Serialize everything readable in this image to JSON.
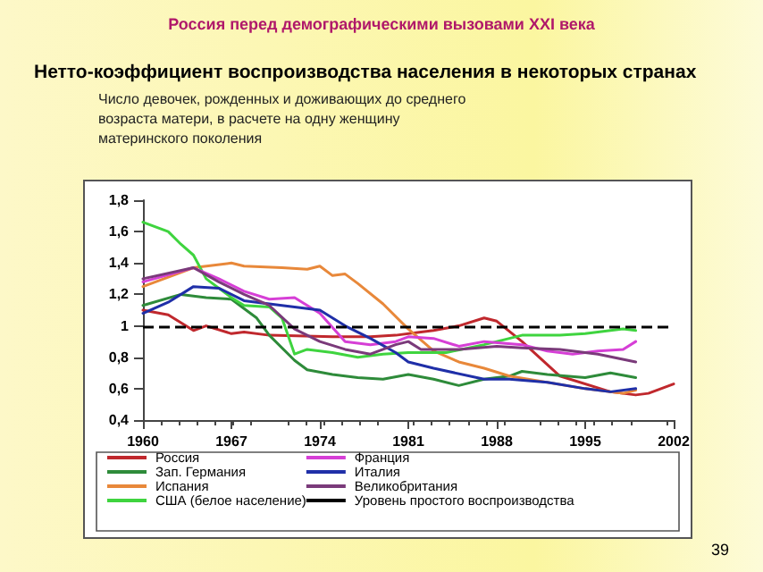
{
  "chart_data": {
    "type": "line",
    "title": "Нетто-коэффициент воспроизводства населения в некоторых странах",
    "subtitle": "Число девочек, рожденных и доживающих до среднего возраста матери, в расчете на одну женщину материнского поколения",
    "annotations": [
      "Россия перед демографическими вызовами XXI века",
      "39"
    ],
    "xlim": [
      1960,
      2002
    ],
    "xticks": [
      1960,
      1967,
      1974,
      1981,
      1988,
      1995,
      2002
    ],
    "ylim": [
      0.4,
      1.8
    ],
    "yticks": [
      {
        "value": 0.4,
        "label": "0,4"
      },
      {
        "value": 0.6,
        "label": "0,6"
      },
      {
        "value": 0.8,
        "label": "0,8"
      },
      {
        "value": 1,
        "label": "1"
      },
      {
        "value": 1.2,
        "label": "1,2"
      },
      {
        "value": 1.4,
        "label": "1,4"
      },
      {
        "value": 1.6,
        "label": "1,6"
      },
      {
        "value": 1.8,
        "label": "1,8"
      }
    ],
    "grid": false,
    "legend": "bottom",
    "marker": "none",
    "line_style": "solid",
    "ref_lines": [
      {
        "axis": "y",
        "value": 1,
        "label": "Уровень простого воспроизводства",
        "color": "#000000",
        "line_style": "dashed"
      }
    ],
    "series": [
      {
        "name": "Россия",
        "color": "#c0282d",
        "x": [
          1960,
          1962,
          1964,
          1965,
          1967,
          1968,
          1970,
          1975,
          1978,
          1980,
          1982,
          1983,
          1985,
          1987,
          1988,
          1990,
          1993,
          1997,
          1999,
          2000,
          2002
        ],
        "values": [
          1.1,
          1.07,
          0.97,
          1.0,
          0.95,
          0.96,
          0.94,
          0.93,
          0.93,
          0.94,
          0.96,
          0.97,
          1.0,
          1.05,
          1.03,
          0.9,
          0.68,
          0.58,
          0.56,
          0.57,
          0.63
        ]
      },
      {
        "name": "Зап. Германия",
        "color": "#2e8b3a",
        "x": [
          1960,
          1963,
          1965,
          1967,
          1969,
          1970,
          1972,
          1973,
          1975,
          1977,
          1979,
          1981,
          1983,
          1985,
          1987,
          1989,
          1990,
          1992,
          1995,
          1997,
          1999
        ],
        "values": [
          1.13,
          1.2,
          1.18,
          1.17,
          1.05,
          0.94,
          0.78,
          0.72,
          0.69,
          0.67,
          0.66,
          0.69,
          0.66,
          0.62,
          0.66,
          0.68,
          0.71,
          0.69,
          0.67,
          0.7,
          0.67
        ]
      },
      {
        "name": "Испания",
        "color": "#e8883a",
        "x": [
          1960,
          1964,
          1967,
          1968,
          1971,
          1973,
          1974,
          1975,
          1976,
          1977,
          1979,
          1981,
          1983,
          1985,
          1987,
          1989,
          1995,
          1998,
          1999
        ],
        "values": [
          1.25,
          1.37,
          1.4,
          1.38,
          1.37,
          1.36,
          1.38,
          1.32,
          1.33,
          1.27,
          1.14,
          0.98,
          0.84,
          0.77,
          0.73,
          0.68,
          0.6,
          0.57,
          0.59
        ]
      },
      {
        "name": "США (белое население)",
        "color": "#3fd43f",
        "x": [
          1960,
          1962,
          1963,
          1964,
          1965,
          1967,
          1968,
          1970,
          1971,
          1972,
          1973,
          1975,
          1977,
          1979,
          1981,
          1984,
          1987,
          1990,
          1993,
          1995,
          1998,
          1999
        ],
        "values": [
          1.66,
          1.6,
          1.52,
          1.45,
          1.3,
          1.18,
          1.13,
          1.12,
          1.05,
          0.82,
          0.85,
          0.83,
          0.8,
          0.82,
          0.83,
          0.83,
          0.88,
          0.94,
          0.94,
          0.95,
          0.98,
          0.97
        ]
      },
      {
        "name": "Франция",
        "color": "#d63fd6",
        "x": [
          1960,
          1964,
          1966,
          1968,
          1970,
          1972,
          1974,
          1976,
          1978,
          1980,
          1981,
          1983,
          1985,
          1987,
          1990,
          1992,
          1994,
          1996,
          1998,
          1999
        ],
        "values": [
          1.28,
          1.37,
          1.3,
          1.22,
          1.17,
          1.18,
          1.08,
          0.9,
          0.88,
          0.9,
          0.93,
          0.92,
          0.87,
          0.9,
          0.88,
          0.84,
          0.82,
          0.84,
          0.85,
          0.9
        ]
      },
      {
        "name": "Италия",
        "color": "#1f2fa8",
        "x": [
          1960,
          1962,
          1964,
          1966,
          1968,
          1970,
          1972,
          1974,
          1976,
          1978,
          1980,
          1981,
          1983,
          1987,
          1989,
          1992,
          1995,
          1997,
          1999
        ],
        "values": [
          1.08,
          1.15,
          1.25,
          1.24,
          1.16,
          1.14,
          1.12,
          1.1,
          1.0,
          0.92,
          0.83,
          0.77,
          0.73,
          0.66,
          0.66,
          0.64,
          0.6,
          0.58,
          0.6
        ]
      },
      {
        "name": "Великобритания",
        "color": "#7a3a7a",
        "x": [
          1960,
          1964,
          1966,
          1968,
          1970,
          1972,
          1974,
          1976,
          1978,
          1980,
          1981,
          1982,
          1985,
          1988,
          1990,
          1993,
          1996,
          1999
        ],
        "values": [
          1.3,
          1.37,
          1.28,
          1.2,
          1.13,
          0.98,
          0.9,
          0.85,
          0.82,
          0.88,
          0.9,
          0.85,
          0.85,
          0.87,
          0.86,
          0.85,
          0.82,
          0.77
        ]
      }
    ]
  }
}
